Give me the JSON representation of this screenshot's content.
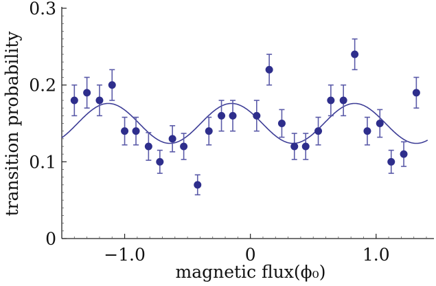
{
  "chart_data": {
    "type": "scatter",
    "xlabel": "magnetic flux(ϕ₀)",
    "ylabel": "transition probability",
    "xlim": [
      -1.5,
      1.46
    ],
    "ylim": [
      0,
      0.3
    ],
    "x_ticks": [
      {
        "v": -1.0,
        "label": "−1.0"
      },
      {
        "v": 0,
        "label": "0"
      },
      {
        "v": 1.0,
        "label": "1.0"
      }
    ],
    "y_ticks": [
      {
        "v": 0,
        "label": "0"
      },
      {
        "v": 0.1,
        "label": "0.1"
      },
      {
        "v": 0.2,
        "label": "0.2"
      },
      {
        "v": 0.3,
        "label": "0.3"
      }
    ],
    "grid": false,
    "colors": {
      "points": "#2e2e8c",
      "error_bars": "#5a5aa8",
      "fit": "#3c3c96"
    },
    "series": [
      {
        "x": [
          -1.4,
          -1.3,
          -1.2,
          -1.1,
          -1.0,
          -0.91,
          -0.81,
          -0.72,
          -0.62,
          -0.53,
          -0.42,
          -0.33,
          -0.23,
          -0.14,
          0.05,
          0.15,
          0.25,
          0.35,
          0.44,
          0.54,
          0.64,
          0.74,
          0.83,
          0.93,
          1.03,
          1.12,
          1.22,
          1.32
        ],
        "y": [
          0.18,
          0.19,
          0.18,
          0.2,
          0.14,
          0.14,
          0.12,
          0.1,
          0.13,
          0.12,
          0.07,
          0.14,
          0.16,
          0.16,
          0.16,
          0.22,
          0.15,
          0.12,
          0.12,
          0.14,
          0.18,
          0.18,
          0.24,
          0.14,
          0.15,
          0.1,
          0.11,
          0.19
        ],
        "err": [
          0.02,
          0.02,
          0.02,
          0.02,
          0.018,
          0.018,
          0.018,
          0.015,
          0.017,
          0.017,
          0.013,
          0.018,
          0.02,
          0.02,
          0.02,
          0.02,
          0.018,
          0.017,
          0.017,
          0.018,
          0.02,
          0.02,
          0.02,
          0.018,
          0.018,
          0.015,
          0.016,
          0.02
        ]
      }
    ],
    "fit": {
      "form": "0.15 + 0.026*cos(2*pi*(x+0.15)/0.98)",
      "offset": 0.15,
      "amplitude": 0.026,
      "period": 0.98,
      "phase_shift": 0.15
    }
  }
}
